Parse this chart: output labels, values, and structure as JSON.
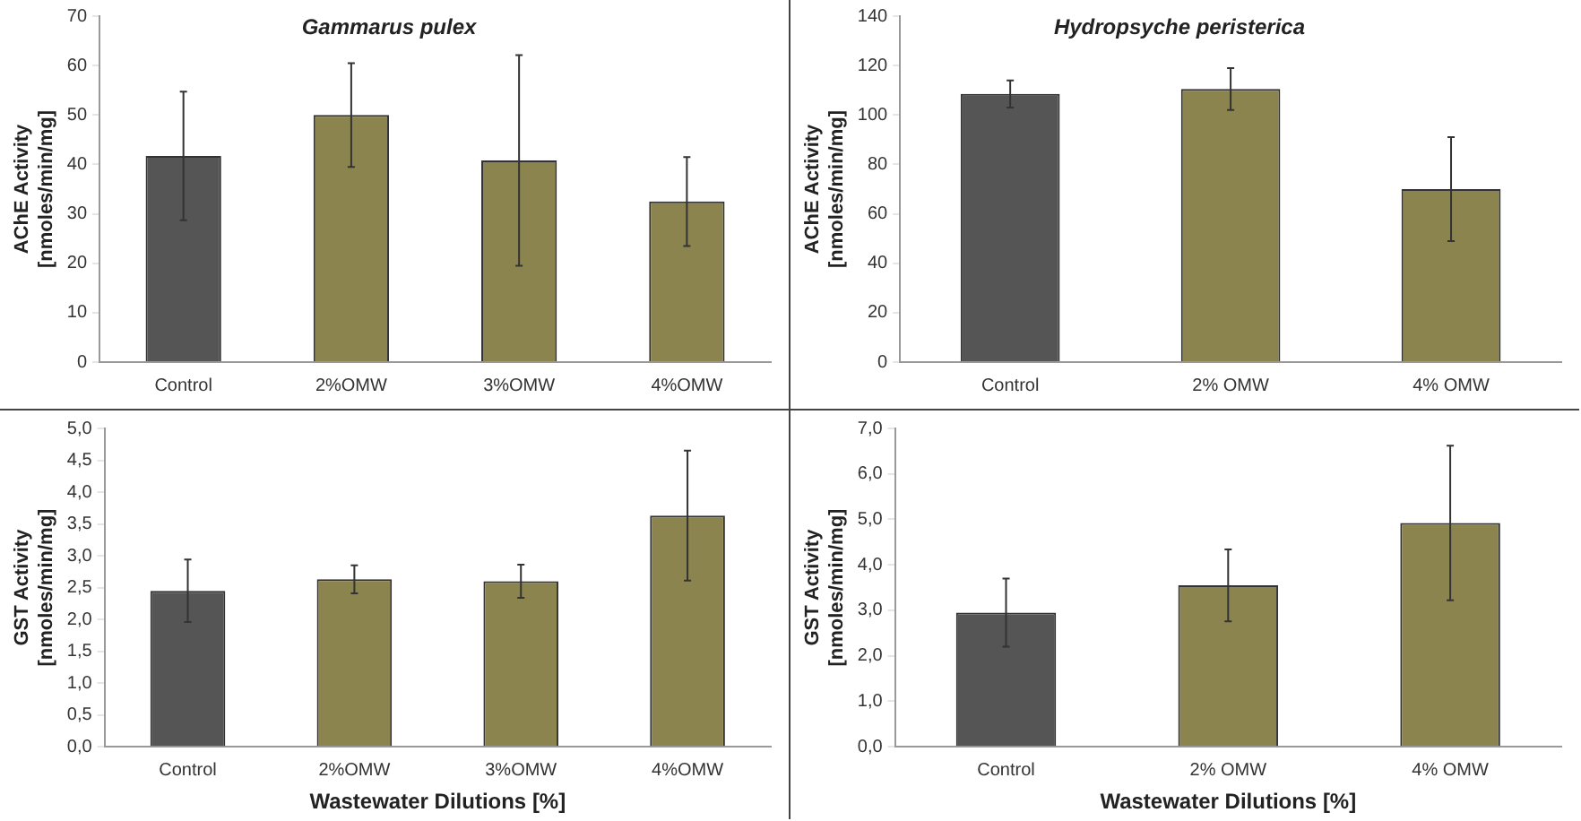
{
  "chart_data": [
    {
      "type": "bar",
      "title": "Gammarus pulex",
      "ylabel": "AChE Activity [nmoles/min/mg]",
      "categories": [
        "Control",
        "2%OMW",
        "3%OMW",
        "4%OMW"
      ],
      "values": [
        41.7,
        50,
        40.8,
        32.5
      ],
      "errors": [
        13,
        10.5,
        21.3,
        9
      ],
      "colors": [
        "#555555",
        "#8b844e",
        "#8b844e",
        "#8b844e"
      ],
      "ylim": [
        0,
        70
      ],
      "yticks": [
        0,
        10,
        20,
        30,
        40,
        50,
        60,
        70
      ]
    },
    {
      "type": "bar",
      "title": "Hydropsyche peristerica",
      "ylabel": "AChE Activity [nmoles/min/mg]",
      "categories": [
        "Control",
        "2% OMW",
        "4% OMW"
      ],
      "values": [
        108.5,
        110.5,
        70
      ],
      "errors": [
        5.5,
        8.5,
        21
      ],
      "colors": [
        "#555555",
        "#8b844e",
        "#8b844e"
      ],
      "ylim": [
        0,
        140
      ],
      "yticks": [
        0,
        20,
        40,
        60,
        80,
        100,
        120,
        140
      ]
    },
    {
      "type": "bar",
      "xlabel": "Wastewater Dilutions [%]",
      "ylabel": "GST Activity [nmoles/min/mg]",
      "categories": [
        "Control",
        "2%OMW",
        "3%OMW",
        "4%OMW"
      ],
      "values": [
        2.45,
        2.63,
        2.6,
        3.63
      ],
      "errors": [
        0.49,
        0.22,
        0.26,
        1.02
      ],
      "colors": [
        "#555555",
        "#8b844e",
        "#8b844e",
        "#8b844e"
      ],
      "ylim": [
        0,
        5
      ],
      "yticks": [
        {
          "value": 0,
          "label": "0,0"
        },
        {
          "value": 0.5,
          "label": "0,5"
        },
        {
          "value": 1,
          "label": "1,0"
        },
        {
          "value": 1.5,
          "label": "1,5"
        },
        {
          "value": 2,
          "label": "2,0"
        },
        {
          "value": 2.5,
          "label": "2,5"
        },
        {
          "value": 3,
          "label": "3,0"
        },
        {
          "value": 3.5,
          "label": "3,5"
        },
        {
          "value": 4,
          "label": "4,0"
        },
        {
          "value": 4.5,
          "label": "4,5"
        },
        {
          "value": 5,
          "label": "5,0"
        }
      ]
    },
    {
      "type": "bar",
      "xlabel": "Wastewater Dilutions [%]",
      "ylabel": "GST Activity [nmoles/min/mg]",
      "categories": [
        "Control",
        "2% OMW",
        "4% OMW"
      ],
      "values": [
        2.95,
        3.55,
        4.92
      ],
      "errors": [
        0.75,
        0.79,
        1.7
      ],
      "colors": [
        "#555555",
        "#8b844e",
        "#8b844e"
      ],
      "ylim": [
        0,
        7
      ],
      "yticks": [
        {
          "value": 0,
          "label": "0,0"
        },
        {
          "value": 1,
          "label": "1,0"
        },
        {
          "value": 2,
          "label": "2,0"
        },
        {
          "value": 3,
          "label": "3,0"
        },
        {
          "value": 4,
          "label": "4,0"
        },
        {
          "value": 5,
          "label": "5,0"
        },
        {
          "value": 6,
          "label": "6,0"
        },
        {
          "value": 7,
          "label": "7,0"
        }
      ]
    }
  ]
}
